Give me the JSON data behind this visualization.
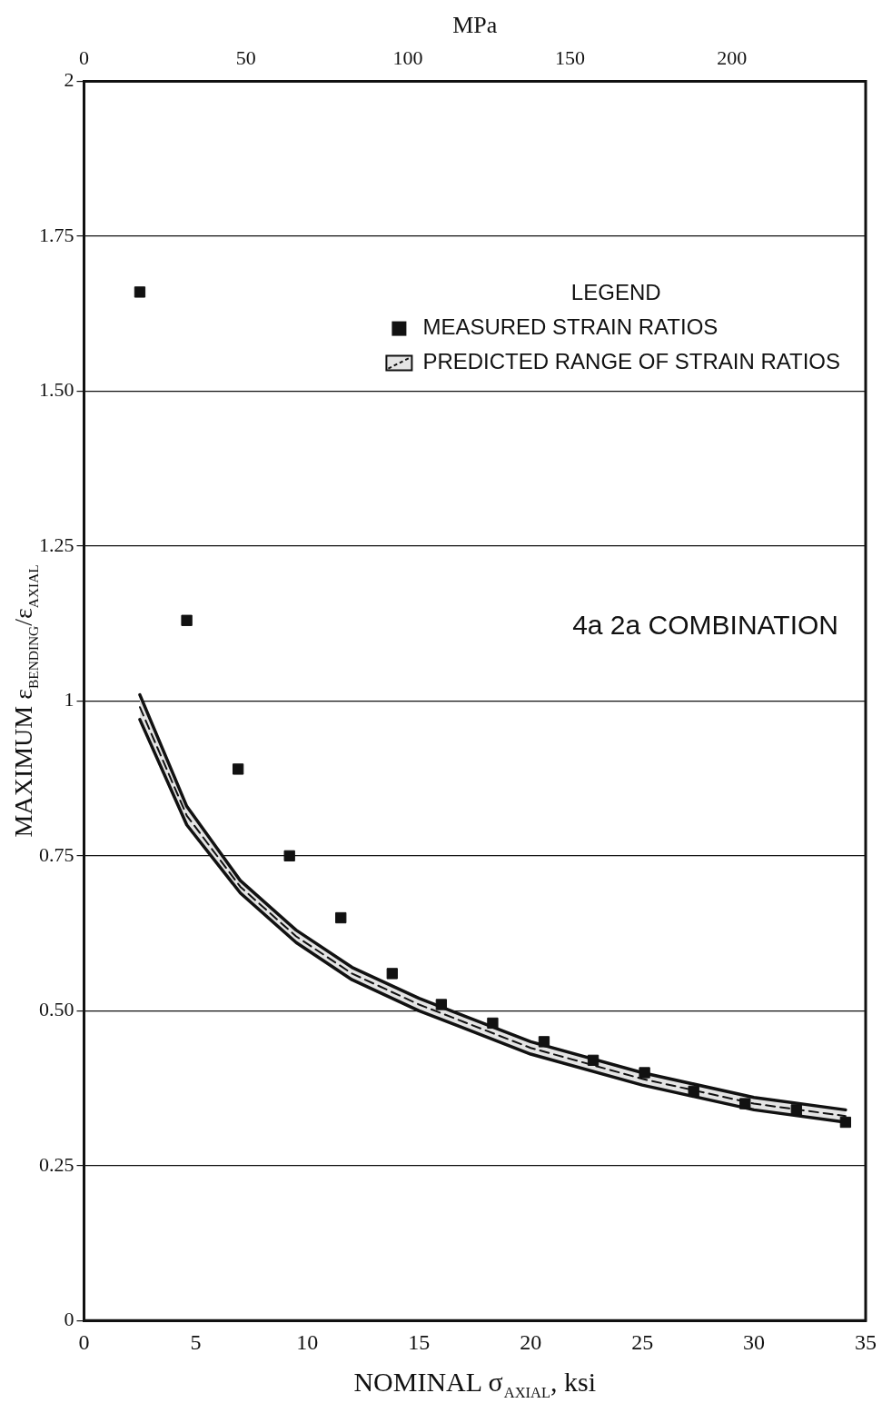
{
  "chart_data": {
    "type": "scatter",
    "xlabel": "NOMINAL σ$_{AXIAL}$, ksi",
    "ylabel": "MAXIMUM ε$_{BENDING}$/ε$_{AXIAL}$",
    "x2label": "MPa",
    "legend_title": "LEGEND",
    "legend": "top right",
    "grid": "y",
    "marker": "square",
    "xlim": [
      0,
      35
    ],
    "xticks": [
      0,
      5,
      10,
      15,
      20,
      25,
      30,
      35
    ],
    "x2lim": [
      0,
      241.3
    ],
    "x2ticks": [
      0,
      50,
      100,
      150,
      200
    ],
    "ylim": [
      0,
      2
    ],
    "yticks": [
      0,
      {
        "value": 0.25,
        "label": "0.25"
      },
      {
        "value": 0.5,
        "label": "0.50"
      },
      {
        "value": 0.75,
        "label": "0.75"
      },
      1,
      1.25,
      {
        "value": 1.5,
        "label": "1.50"
      },
      1.75,
      2
    ],
    "annotations": [
      "4a 2a COMBINATION"
    ],
    "series": [
      {
        "name": "MEASURED STRAIN RATIOS",
        "color": "#111111",
        "x": [
          2.5,
          4.6,
          6.9,
          9.2,
          11.5,
          13.8,
          16.0,
          18.3,
          20.6,
          22.8,
          25.1,
          27.3,
          29.6,
          31.9,
          34.1
        ],
        "values": [
          1.66,
          1.13,
          0.89,
          0.75,
          0.65,
          0.56,
          0.51,
          0.48,
          0.45,
          0.42,
          0.4,
          0.37,
          0.35,
          0.34,
          0.32
        ]
      },
      {
        "name": "PREDICTED RANGE OF STRAIN RATIOS",
        "type": "line",
        "line_style": "dashed",
        "marker": "none",
        "color": "#111111",
        "x": [
          2.5,
          4.6,
          7,
          9.5,
          12,
          15,
          20,
          25,
          30,
          34.1
        ],
        "values": [
          0.99,
          0.815,
          0.7,
          0.62,
          0.56,
          0.51,
          0.44,
          0.39,
          0.35,
          0.33
        ],
        "lower": [
          0.97,
          0.8,
          0.69,
          0.61,
          0.55,
          0.5,
          0.43,
          0.38,
          0.34,
          0.32
        ],
        "upper": [
          1.01,
          0.83,
          0.71,
          0.63,
          0.57,
          0.52,
          0.45,
          0.4,
          0.36,
          0.34
        ]
      },
      {
        "type": "line",
        "line_style": "solid",
        "marker": "none",
        "color": "#111111",
        "x": [
          2.5,
          4.6,
          7,
          9.5,
          12,
          15,
          20,
          25,
          30,
          34.1
        ],
        "values": [
          1.01,
          0.83,
          0.71,
          0.63,
          0.57,
          0.52,
          0.45,
          0.4,
          0.36,
          0.34
        ]
      },
      {
        "type": "line",
        "line_style": "solid",
        "marker": "none",
        "color": "#111111",
        "x": [
          2.5,
          4.6,
          7,
          9.5,
          12,
          15,
          20,
          25,
          30,
          34.1
        ],
        "values": [
          0.97,
          0.8,
          0.69,
          0.61,
          0.55,
          0.5,
          0.43,
          0.38,
          0.34,
          0.32
        ]
      }
    ]
  }
}
